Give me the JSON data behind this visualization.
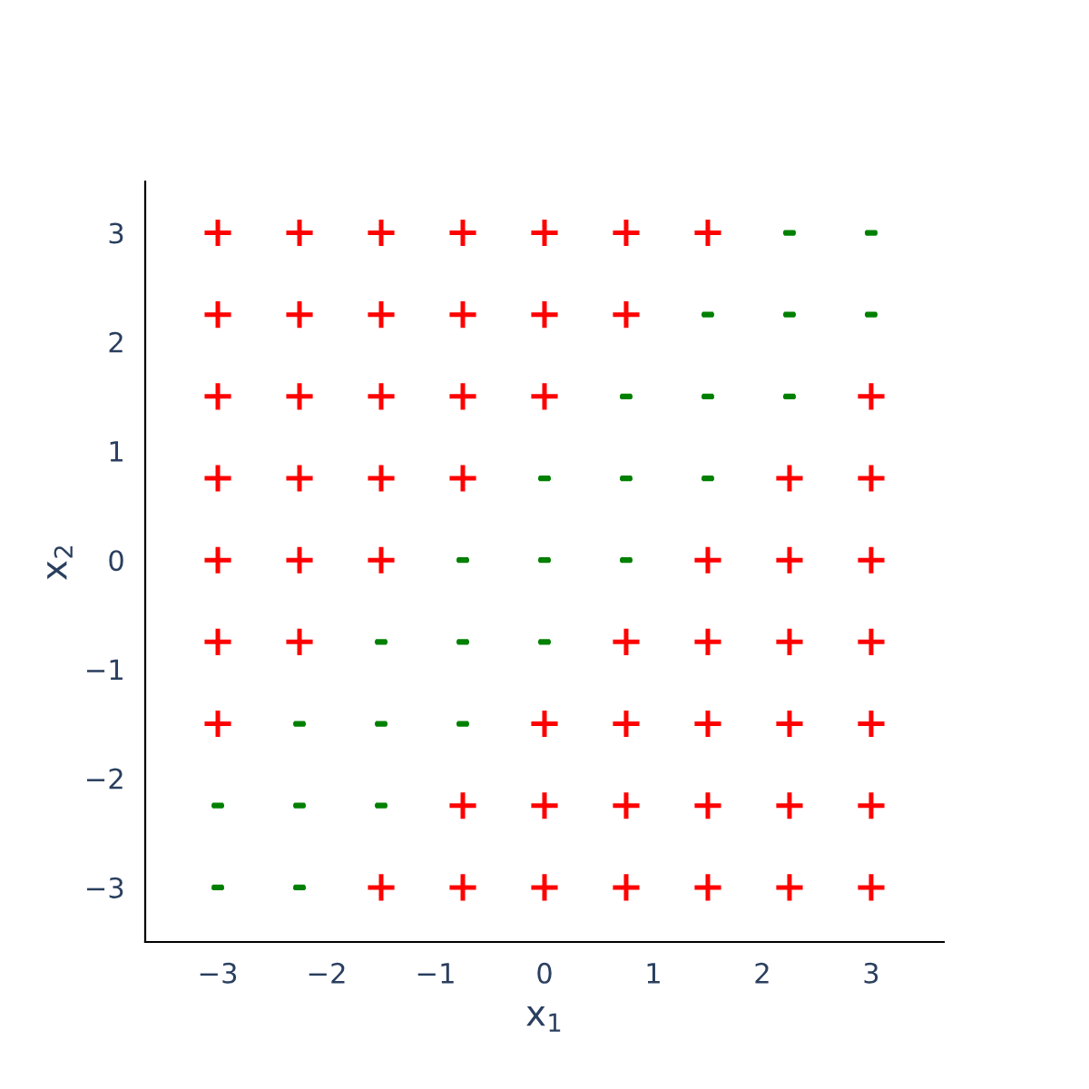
{
  "chart_data": {
    "type": "scatter",
    "xlabel": "x$_{1}$",
    "ylabel": "x$_{2}$",
    "xlim": [
      -3.667,
      3.667
    ],
    "ylim": [
      -3.5,
      3.47
    ],
    "xticks": [
      {
        "value": -3,
        "label": "−3"
      },
      {
        "value": -2,
        "label": "−2"
      },
      {
        "value": -1,
        "label": "−1"
      },
      0,
      1,
      2,
      3
    ],
    "yticks": [
      {
        "value": -3,
        "label": "−3"
      },
      {
        "value": -2,
        "label": "−2"
      },
      {
        "value": -1,
        "label": "−1"
      },
      0,
      1,
      2,
      3
    ],
    "grid": false,
    "legend": false,
    "series": [
      {
        "color": "#ff0000",
        "marker": "cross",
        "x": [
          -3,
          -2.25,
          -1.5,
          -0.75,
          0,
          0.75,
          1.5,
          -3,
          -2.25,
          -1.5,
          -0.75,
          0,
          0.75,
          -3,
          -2.25,
          -1.5,
          -0.75,
          0,
          3,
          -3,
          -2.25,
          -1.5,
          -0.75,
          2.25,
          3,
          -3,
          -2.25,
          -1.5,
          1.5,
          2.25,
          3,
          -3,
          -2.25,
          0.75,
          1.5,
          2.25,
          3,
          -3,
          0,
          0.75,
          1.5,
          2.25,
          3,
          -0.75,
          0,
          0.75,
          1.5,
          2.25,
          3,
          -1.5,
          -0.75,
          0,
          0.75,
          1.5,
          2.25,
          3
        ],
        "values": [
          3,
          3,
          3,
          3,
          3,
          3,
          3,
          2.25,
          2.25,
          2.25,
          2.25,
          2.25,
          2.25,
          1.5,
          1.5,
          1.5,
          1.5,
          1.5,
          1.5,
          0.75,
          0.75,
          0.75,
          0.75,
          0.75,
          0.75,
          0,
          0,
          0,
          0,
          0,
          0,
          -0.75,
          -0.75,
          -0.75,
          -0.75,
          -0.75,
          -0.75,
          -1.5,
          -1.5,
          -1.5,
          -1.5,
          -1.5,
          -1.5,
          -2.25,
          -2.25,
          -2.25,
          -2.25,
          -2.25,
          -2.25,
          -3,
          -3,
          -3,
          -3,
          -3,
          -3,
          -3
        ]
      },
      {
        "color": "#008000",
        "x": [
          2.25,
          3,
          1.5,
          2.25,
          3,
          0.75,
          1.5,
          2.25,
          0,
          0.75,
          1.5,
          -0.75,
          0,
          0.75,
          -1.5,
          -0.75,
          0,
          -2.25,
          -1.5,
          -0.75,
          -3,
          -2.25,
          -1.5,
          -3,
          -2.25
        ],
        "values": [
          3,
          3,
          2.25,
          2.25,
          2.25,
          1.5,
          1.5,
          1.5,
          0.75,
          0.75,
          0.75,
          0,
          0,
          0,
          -0.75,
          -0.75,
          -0.75,
          -1.5,
          -1.5,
          -1.5,
          -2.25,
          -2.25,
          -2.25,
          -3,
          -3
        ]
      }
    ]
  }
}
